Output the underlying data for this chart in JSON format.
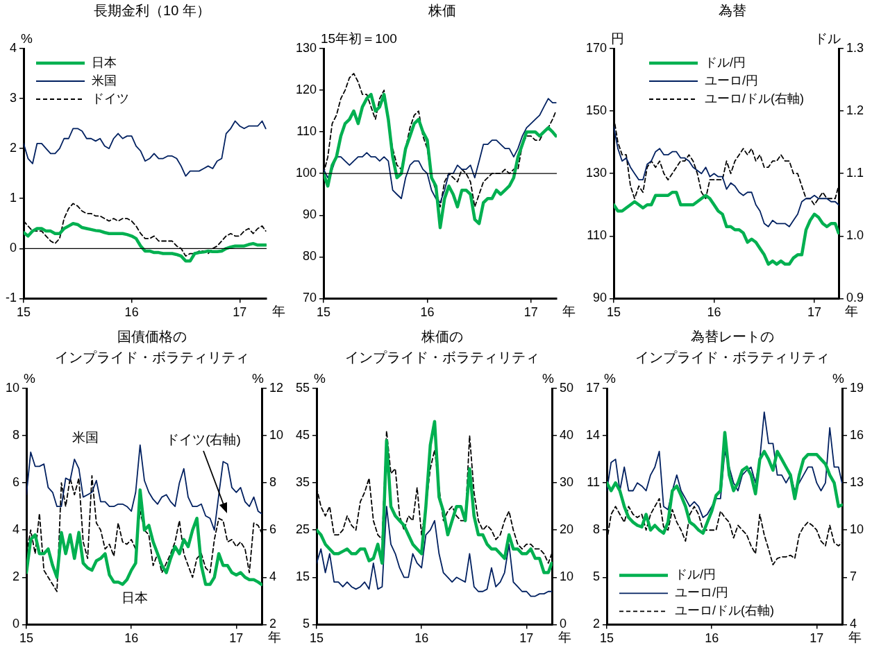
{
  "chart_data": [
    {
      "type": "line",
      "title": "長期金利（10 年）",
      "ylabel": "%",
      "xlabel": "年",
      "x": [
        "2015-01-01",
        "2015-01-16",
        "2015-02-01",
        "2015-02-16",
        "2015-03-01",
        "2015-03-16",
        "2015-04-01",
        "2015-04-16",
        "2015-05-01",
        "2015-05-16",
        "2015-06-01",
        "2015-06-16",
        "2015-07-01",
        "2015-07-16",
        "2015-08-01",
        "2015-08-16",
        "2015-09-01",
        "2015-09-16",
        "2015-10-01",
        "2015-10-16",
        "2015-11-01",
        "2015-11-16",
        "2015-12-01",
        "2015-12-16",
        "2016-01-01",
        "2016-01-16",
        "2016-02-01",
        "2016-02-16",
        "2016-03-01",
        "2016-03-16",
        "2016-04-01",
        "2016-04-16",
        "2016-05-01",
        "2016-05-16",
        "2016-06-01",
        "2016-06-16",
        "2016-07-01",
        "2016-07-16",
        "2016-08-01",
        "2016-08-16",
        "2016-09-01",
        "2016-09-16",
        "2016-10-01",
        "2016-10-16",
        "2016-11-01",
        "2016-11-16",
        "2016-12-01",
        "2016-12-16",
        "2017-01-01",
        "2017-01-16",
        "2017-02-01",
        "2017-02-16",
        "2017-03-01",
        "2017-03-16",
        "2017-03-28"
      ],
      "series": [
        {
          "name": "日本",
          "color": "#00b050",
          "values": [
            0.32,
            0.25,
            0.35,
            0.4,
            0.4,
            0.35,
            0.35,
            0.3,
            0.3,
            0.4,
            0.45,
            0.5,
            0.48,
            0.42,
            0.4,
            0.38,
            0.36,
            0.35,
            0.32,
            0.3,
            0.3,
            0.3,
            0.3,
            0.28,
            0.25,
            0.2,
            0.05,
            -0.05,
            -0.05,
            -0.08,
            -0.08,
            -0.1,
            -0.1,
            -0.1,
            -0.12,
            -0.15,
            -0.25,
            -0.25,
            -0.1,
            -0.08,
            -0.07,
            -0.05,
            -0.06,
            -0.06,
            -0.05,
            0.0,
            0.03,
            0.05,
            0.05,
            0.05,
            0.08,
            0.1,
            0.07,
            0.07,
            0.07
          ]
        },
        {
          "name": "米国",
          "color": "#002060",
          "values": [
            2.1,
            1.8,
            1.7,
            2.1,
            2.1,
            2.0,
            1.9,
            1.9,
            2.0,
            2.2,
            2.2,
            2.4,
            2.4,
            2.35,
            2.2,
            2.2,
            2.15,
            2.2,
            2.05,
            2.0,
            2.2,
            2.3,
            2.2,
            2.25,
            2.25,
            2.05,
            1.95,
            1.75,
            1.8,
            1.9,
            1.8,
            1.8,
            1.85,
            1.85,
            1.8,
            1.65,
            1.45,
            1.55,
            1.55,
            1.55,
            1.6,
            1.65,
            1.6,
            1.75,
            1.8,
            2.3,
            2.4,
            2.55,
            2.45,
            2.4,
            2.45,
            2.45,
            2.45,
            2.55,
            2.4
          ]
        },
        {
          "name": "ドイツ",
          "color": "#000000",
          "line_style": "dashed",
          "values": [
            0.55,
            0.45,
            0.35,
            0.35,
            0.35,
            0.25,
            0.15,
            0.1,
            0.2,
            0.6,
            0.8,
            0.9,
            0.85,
            0.75,
            0.7,
            0.7,
            0.65,
            0.65,
            0.6,
            0.55,
            0.6,
            0.55,
            0.6,
            0.6,
            0.55,
            0.45,
            0.3,
            0.2,
            0.2,
            0.25,
            0.15,
            0.15,
            0.15,
            0.15,
            0.05,
            0.0,
            -0.15,
            -0.1,
            -0.1,
            -0.05,
            -0.05,
            -0.1,
            0.0,
            0.05,
            0.15,
            0.25,
            0.3,
            0.25,
            0.25,
            0.35,
            0.4,
            0.3,
            0.4,
            0.45,
            0.35
          ]
        }
      ],
      "xlim": [
        "2015-01-01",
        "2017-03-31"
      ],
      "xticks": [
        {
          "value": "2015",
          "label": "15"
        },
        {
          "value": "2016",
          "label": "16"
        },
        {
          "value": "2017",
          "label": "17"
        }
      ],
      "ylim": [
        -1,
        4
      ],
      "yticks": [
        -1,
        0,
        1,
        2,
        3,
        4
      ],
      "ref_lines": [
        {
          "axis": "y",
          "value": 0,
          "color": "#000000"
        }
      ],
      "legend": "top left",
      "grid": false
    },
    {
      "type": "line",
      "title": "株価",
      "ylabel": "15年初＝100",
      "xlabel": "年",
      "x": [
        "2015-01-01",
        "2015-01-16",
        "2015-02-01",
        "2015-02-16",
        "2015-03-01",
        "2015-03-16",
        "2015-04-01",
        "2015-04-16",
        "2015-05-01",
        "2015-05-16",
        "2015-06-01",
        "2015-06-16",
        "2015-07-01",
        "2015-07-16",
        "2015-08-01",
        "2015-08-16",
        "2015-09-01",
        "2015-09-16",
        "2015-10-01",
        "2015-10-16",
        "2015-11-01",
        "2015-11-16",
        "2015-12-01",
        "2015-12-16",
        "2016-01-01",
        "2016-01-16",
        "2016-02-01",
        "2016-02-16",
        "2016-03-01",
        "2016-03-16",
        "2016-04-01",
        "2016-04-16",
        "2016-05-01",
        "2016-05-16",
        "2016-06-01",
        "2016-06-16",
        "2016-07-01",
        "2016-07-16",
        "2016-08-01",
        "2016-08-16",
        "2016-09-01",
        "2016-09-16",
        "2016-10-01",
        "2016-10-16",
        "2016-11-01",
        "2016-11-16",
        "2016-12-01",
        "2016-12-16",
        "2017-01-01",
        "2017-01-16",
        "2017-02-01",
        "2017-02-16",
        "2017-03-01",
        "2017-03-16",
        "2017-03-28"
      ],
      "series": [
        {
          "color": "#00b050",
          "values": [
            100,
            97,
            102,
            104,
            109,
            112,
            113,
            115,
            112,
            116,
            118,
            119,
            115,
            116,
            119,
            113,
            104,
            99,
            100,
            106,
            109,
            112,
            113,
            110,
            108,
            99,
            97,
            87,
            94,
            97,
            95,
            92,
            96,
            96,
            95,
            89,
            88,
            93,
            94,
            94,
            96,
            95,
            96,
            97,
            99,
            104,
            107,
            110,
            110,
            110,
            109,
            110,
            111,
            110,
            109
          ]
        },
        {
          "color": "#002060",
          "values": [
            101,
            99,
            101,
            104,
            104,
            103,
            102,
            103,
            104,
            104,
            105,
            104,
            104,
            103,
            104,
            103,
            96,
            95,
            94,
            99,
            102,
            103,
            103,
            101,
            100,
            96,
            94,
            93,
            96,
            100,
            100,
            102,
            101,
            101,
            102,
            99,
            103,
            107,
            107,
            108,
            108,
            107,
            106,
            106,
            104,
            106,
            109,
            111,
            112,
            113,
            114,
            116,
            118,
            117,
            117
          ]
        },
        {
          "color": "#000000",
          "line_style": "dashed",
          "values": [
            100,
            104,
            112,
            114,
            118,
            120,
            123,
            124,
            122,
            119,
            119,
            116,
            113,
            118,
            120,
            112,
            106,
            102,
            101,
            106,
            111,
            114,
            115,
            109,
            106,
            99,
            96,
            92,
            98,
            100,
            99,
            98,
            101,
            100,
            98,
            92,
            95,
            98,
            99,
            100,
            100,
            100,
            101,
            100,
            101,
            101,
            107,
            109,
            109,
            108,
            108,
            110,
            111,
            113,
            115
          ]
        }
      ],
      "xlim": [
        "2015-01-01",
        "2017-03-31"
      ],
      "xticks": [
        {
          "value": "2015",
          "label": "15"
        },
        {
          "value": "2016",
          "label": "16"
        },
        {
          "value": "2017",
          "label": "17"
        }
      ],
      "ylim": [
        70,
        130
      ],
      "yticks": [
        70,
        80,
        90,
        100,
        110,
        120,
        130
      ],
      "ref_lines": [
        {
          "axis": "y",
          "value": 100,
          "color": "#000000"
        }
      ],
      "grid": false
    },
    {
      "type": "line",
      "title": "為替",
      "ylabel": "円",
      "y2label": "ドル",
      "xlabel": "年",
      "x": [
        "2015-01-01",
        "2015-01-16",
        "2015-02-01",
        "2015-02-16",
        "2015-03-01",
        "2015-03-16",
        "2015-04-01",
        "2015-04-16",
        "2015-05-01",
        "2015-05-16",
        "2015-06-01",
        "2015-06-16",
        "2015-07-01",
        "2015-07-16",
        "2015-08-01",
        "2015-08-16",
        "2015-09-01",
        "2015-09-16",
        "2015-10-01",
        "2015-10-16",
        "2015-11-01",
        "2015-11-16",
        "2015-12-01",
        "2015-12-16",
        "2016-01-01",
        "2016-01-16",
        "2016-02-01",
        "2016-02-16",
        "2016-03-01",
        "2016-03-16",
        "2016-04-01",
        "2016-04-16",
        "2016-05-01",
        "2016-05-16",
        "2016-06-01",
        "2016-06-16",
        "2016-07-01",
        "2016-07-16",
        "2016-08-01",
        "2016-08-16",
        "2016-09-01",
        "2016-09-16",
        "2016-10-01",
        "2016-10-16",
        "2016-11-01",
        "2016-11-16",
        "2016-12-01",
        "2016-12-16",
        "2017-01-01",
        "2017-01-16",
        "2017-02-01",
        "2017-02-16",
        "2017-03-01",
        "2017-03-16",
        "2017-03-28"
      ],
      "series": [
        {
          "name": "ドル/円",
          "color": "#00b050",
          "values": [
            120,
            118,
            118,
            119,
            120,
            121,
            120,
            119,
            120,
            120,
            123,
            123,
            123,
            123,
            124,
            124,
            120,
            120,
            120,
            120,
            121,
            122,
            123,
            122,
            120,
            118,
            117,
            113,
            113,
            112,
            112,
            111,
            108,
            109,
            108,
            106,
            104,
            101,
            102,
            101,
            102,
            101,
            101,
            103,
            104,
            104,
            112,
            115,
            117,
            116,
            114,
            113,
            114,
            114,
            111
          ]
        },
        {
          "name": "ユーロ/円",
          "color": "#002060",
          "values": [
            145,
            138,
            134,
            135,
            132,
            130,
            128,
            128,
            133,
            134,
            137,
            138,
            136,
            136,
            137,
            137,
            135,
            135,
            134,
            132,
            131,
            130,
            132,
            129,
            130,
            129,
            129,
            125,
            127,
            126,
            124,
            123,
            124,
            124,
            120,
            118,
            114,
            113,
            115,
            114,
            114,
            114,
            113,
            115,
            117,
            121,
            122,
            122,
            123,
            122,
            122,
            122,
            121,
            121,
            120
          ]
        },
        {
          "name": "ユーロ/ドル(右軸)",
          "color": "#000000",
          "line_style": "dashed",
          "axis": "y2",
          "values": [
            1.19,
            1.15,
            1.13,
            1.13,
            1.08,
            1.06,
            1.08,
            1.07,
            1.11,
            1.12,
            1.11,
            1.12,
            1.1,
            1.09,
            1.1,
            1.11,
            1.12,
            1.12,
            1.13,
            1.12,
            1.1,
            1.07,
            1.06,
            1.09,
            1.09,
            1.09,
            1.09,
            1.12,
            1.1,
            1.12,
            1.13,
            1.14,
            1.13,
            1.14,
            1.12,
            1.13,
            1.11,
            1.11,
            1.12,
            1.12,
            1.13,
            1.12,
            1.12,
            1.1,
            1.1,
            1.08,
            1.06,
            1.06,
            1.05,
            1.06,
            1.07,
            1.06,
            1.06,
            1.06,
            1.08
          ]
        }
      ],
      "xlim": [
        "2015-01-01",
        "2017-03-31"
      ],
      "xticks": [
        {
          "value": "2015",
          "label": "15"
        },
        {
          "value": "2016",
          "label": "16"
        },
        {
          "value": "2017",
          "label": "17"
        }
      ],
      "ylim": [
        90,
        170
      ],
      "yticks": [
        90,
        110,
        130,
        150,
        170
      ],
      "y2lim": [
        0.9,
        1.3
      ],
      "y2ticks": [
        {
          "value": 0.9,
          "label": "0.9"
        },
        {
          "value": 1.0,
          "label": "1.0"
        },
        {
          "value": 1.1,
          "label": "1.1"
        },
        {
          "value": 1.2,
          "label": "1.2"
        },
        {
          "value": 1.3,
          "label": "1.3"
        }
      ],
      "legend": "top",
      "grid": false
    },
    {
      "type": "line",
      "title": "国債価格の",
      "subtitle": "インプライド・ボラティリティ",
      "ylabel": "%",
      "y2label": "%",
      "xlabel": "年",
      "x": [
        "2015-01-01",
        "2015-01-16",
        "2015-02-01",
        "2015-02-16",
        "2015-03-01",
        "2015-03-16",
        "2015-04-01",
        "2015-04-16",
        "2015-05-01",
        "2015-05-16",
        "2015-06-01",
        "2015-06-16",
        "2015-07-01",
        "2015-07-16",
        "2015-08-01",
        "2015-08-16",
        "2015-09-01",
        "2015-09-16",
        "2015-10-01",
        "2015-10-16",
        "2015-11-01",
        "2015-11-16",
        "2015-12-01",
        "2015-12-16",
        "2016-01-01",
        "2016-01-16",
        "2016-02-01",
        "2016-02-16",
        "2016-03-01",
        "2016-03-16",
        "2016-04-01",
        "2016-04-16",
        "2016-05-01",
        "2016-05-16",
        "2016-06-01",
        "2016-06-16",
        "2016-07-01",
        "2016-07-16",
        "2016-08-01",
        "2016-08-16",
        "2016-09-01",
        "2016-09-16",
        "2016-10-01",
        "2016-10-16",
        "2016-11-01",
        "2016-11-16",
        "2016-12-01",
        "2016-12-16",
        "2017-01-01",
        "2017-01-16",
        "2017-02-01",
        "2017-02-16",
        "2017-03-01",
        "2017-03-16",
        "2017-03-28"
      ],
      "series": [
        {
          "color": "#00b050",
          "values": [
            2.2,
            3.6,
            3.8,
            3.0,
            3.0,
            3.2,
            2.5,
            2.0,
            3.9,
            3.0,
            3.8,
            2.8,
            3.9,
            2.6,
            2.4,
            2.3,
            2.7,
            2.8,
            3.0,
            2.1,
            1.8,
            1.8,
            1.7,
            1.9,
            2.3,
            2.6,
            5.7,
            4.0,
            4.2,
            3.5,
            3.0,
            2.5,
            2.2,
            2.8,
            3.3,
            3.0,
            3.6,
            3.3,
            4.0,
            4.5,
            2.5,
            1.7,
            1.7,
            2.0,
            3.0,
            2.5,
            2.5,
            2.2,
            2.1,
            2.2,
            2.0,
            1.9,
            1.9,
            1.8,
            1.7
          ]
        },
        {
          "color": "#002060",
          "values": [
            5.5,
            7.3,
            6.7,
            6.7,
            6.8,
            5.8,
            5.6,
            5.0,
            5.0,
            6.2,
            6.1,
            7.0,
            6.6,
            5.4,
            5.5,
            5.6,
            6.1,
            5.2,
            5.2,
            5.0,
            5.0,
            5.1,
            5.1,
            5.0,
            4.8,
            5.6,
            7.6,
            6.1,
            5.6,
            5.3,
            5.1,
            5.4,
            5.5,
            5.2,
            5.0,
            6.0,
            6.6,
            5.4,
            5.0,
            5.0,
            5.1,
            4.6,
            4.5,
            4.0,
            5.5,
            6.9,
            6.8,
            5.8,
            5.6,
            5.8,
            5.2,
            5.0,
            5.4,
            4.8,
            4.7
          ]
        },
        {
          "color": "#000000",
          "line_style": "dashed",
          "axis": "y2",
          "values": [
            5.0,
            6.0,
            5.0,
            6.7,
            4.3,
            4.0,
            3.7,
            3.4,
            8.0,
            7.0,
            8.2,
            7.5,
            8.2,
            5.5,
            4.8,
            8.3,
            6.3,
            6.0,
            5.2,
            5.4,
            4.9,
            6.3,
            5.5,
            5.4,
            5.6,
            5.2,
            6.8,
            6.0,
            5.8,
            4.5,
            5.0,
            4.2,
            4.6,
            5.0,
            5.5,
            6.4,
            5.0,
            4.5,
            4.0,
            4.8,
            5.0,
            4.4,
            4.2,
            5.6,
            6.5,
            6.4,
            5.5,
            5.6,
            5.3,
            5.5,
            5.2,
            4.2,
            6.3,
            6.2,
            5.9
          ]
        }
      ],
      "annotations": [
        "米国",
        "日本",
        "ドイツ(右軸)"
      ],
      "xlim": [
        "2015-01-01",
        "2017-03-31"
      ],
      "xticks": [
        {
          "value": "2015",
          "label": "15"
        },
        {
          "value": "2016",
          "label": "16"
        },
        {
          "value": "2017",
          "label": "17"
        }
      ],
      "ylim": [
        0,
        10
      ],
      "yticks": [
        0,
        2,
        4,
        6,
        8,
        10
      ],
      "y2lim": [
        2,
        12
      ],
      "y2ticks": [
        2,
        4,
        6,
        8,
        10,
        12
      ],
      "grid": false
    },
    {
      "type": "line",
      "title": "株価の",
      "subtitle": "インプライド・ボラティリティ",
      "ylabel": "%",
      "y2label": "%",
      "xlabel": "年",
      "x": [
        "2015-01-01",
        "2015-01-16",
        "2015-02-01",
        "2015-02-16",
        "2015-03-01",
        "2015-03-16",
        "2015-04-01",
        "2015-04-16",
        "2015-05-01",
        "2015-05-16",
        "2015-06-01",
        "2015-06-16",
        "2015-07-01",
        "2015-07-16",
        "2015-08-01",
        "2015-08-16",
        "2015-09-01",
        "2015-09-16",
        "2015-10-01",
        "2015-10-16",
        "2015-11-01",
        "2015-11-16",
        "2015-12-01",
        "2015-12-16",
        "2016-01-01",
        "2016-01-16",
        "2016-02-01",
        "2016-02-16",
        "2016-03-01",
        "2016-03-16",
        "2016-04-01",
        "2016-04-16",
        "2016-05-01",
        "2016-05-16",
        "2016-06-01",
        "2016-06-16",
        "2016-07-01",
        "2016-07-16",
        "2016-08-01",
        "2016-08-16",
        "2016-09-01",
        "2016-09-16",
        "2016-10-01",
        "2016-10-16",
        "2016-11-01",
        "2016-11-16",
        "2016-12-01",
        "2016-12-16",
        "2017-01-01",
        "2017-01-16",
        "2017-02-01",
        "2017-02-16",
        "2017-03-01",
        "2017-03-16",
        "2017-03-28"
      ],
      "series": [
        {
          "color": "#00b050",
          "values": [
            25,
            24,
            22,
            21,
            20,
            20,
            20.5,
            21,
            20,
            20,
            21,
            21,
            18.5,
            19,
            22,
            18,
            44,
            30,
            28,
            27,
            26,
            24,
            22,
            21,
            20,
            30,
            43,
            48,
            32,
            29,
            24,
            27,
            30,
            30,
            27,
            38,
            28,
            24,
            24,
            22,
            21,
            21,
            20,
            19,
            24,
            21,
            21,
            20,
            20,
            21,
            19,
            19,
            16,
            16,
            18
          ]
        },
        {
          "color": "#002060",
          "values": [
            18,
            21,
            16,
            20,
            14,
            14,
            13,
            14,
            13,
            12.5,
            13,
            14,
            12.5,
            18,
            12.5,
            13,
            30,
            22,
            20,
            17,
            15,
            15,
            20,
            18,
            17,
            24,
            25,
            27,
            20,
            16,
            15,
            14,
            15,
            14.5,
            14,
            20,
            13,
            12,
            12,
            12.5,
            17,
            13,
            14,
            16,
            22,
            14,
            13,
            12,
            12,
            11,
            11,
            11.5,
            11.5,
            12,
            12
          ]
        },
        {
          "color": "#000000",
          "line_style": "dashed",
          "axis": "y2",
          "values": [
            29,
            25,
            23,
            25,
            19,
            19,
            20,
            23,
            21,
            20,
            26,
            28,
            31,
            22,
            19,
            18,
            41,
            32,
            33,
            23,
            20,
            23,
            22,
            29,
            19,
            25,
            33,
            37,
            29,
            22,
            24,
            25,
            23,
            22,
            22,
            40,
            28,
            22,
            20,
            21,
            20,
            18,
            19,
            22,
            24,
            20,
            17,
            16,
            17,
            17,
            16,
            16,
            15,
            13,
            15
          ]
        }
      ],
      "xlim": [
        "2015-01-01",
        "2017-03-31"
      ],
      "xticks": [
        {
          "value": "2015",
          "label": "15"
        },
        {
          "value": "2016",
          "label": "16"
        },
        {
          "value": "2017",
          "label": "17"
        }
      ],
      "ylim": [
        5,
        55
      ],
      "yticks": [
        5,
        15,
        25,
        35,
        45,
        55
      ],
      "y2lim": [
        0,
        50
      ],
      "y2ticks": [
        0,
        10,
        20,
        30,
        40,
        50
      ],
      "grid": false
    },
    {
      "type": "line",
      "title": "為替レートの",
      "subtitle": "インプライド・ボラティリティ",
      "ylabel": "%",
      "y2label": "%",
      "xlabel": "年",
      "x": [
        "2015-01-01",
        "2015-01-16",
        "2015-02-01",
        "2015-02-16",
        "2015-03-01",
        "2015-03-16",
        "2015-04-01",
        "2015-04-16",
        "2015-05-01",
        "2015-05-16",
        "2015-06-01",
        "2015-06-16",
        "2015-07-01",
        "2015-07-16",
        "2015-08-01",
        "2015-08-16",
        "2015-09-01",
        "2015-09-16",
        "2015-10-01",
        "2015-10-16",
        "2015-11-01",
        "2015-11-16",
        "2015-12-01",
        "2015-12-16",
        "2016-01-01",
        "2016-01-16",
        "2016-02-01",
        "2016-02-16",
        "2016-03-01",
        "2016-03-16",
        "2016-04-01",
        "2016-04-16",
        "2016-05-01",
        "2016-05-16",
        "2016-06-01",
        "2016-06-16",
        "2016-07-01",
        "2016-07-16",
        "2016-08-01",
        "2016-08-16",
        "2016-09-01",
        "2016-09-16",
        "2016-10-01",
        "2016-10-16",
        "2016-11-01",
        "2016-11-16",
        "2016-12-01",
        "2016-12-16",
        "2017-01-01",
        "2017-01-16",
        "2017-02-01",
        "2017-02-16",
        "2017-03-01",
        "2017-03-16",
        "2017-03-28"
      ],
      "series": [
        {
          "name": "ドル/円",
          "color": "#00b050",
          "values": [
            11,
            10.5,
            11,
            10.5,
            9.5,
            8.8,
            8.5,
            8.3,
            8.2,
            9.0,
            8.0,
            8.3,
            8.0,
            7.8,
            8.5,
            10.5,
            10.8,
            10.2,
            9.5,
            8.5,
            8.3,
            8.0,
            7.8,
            8.5,
            9.2,
            10.2,
            10.5,
            14.2,
            11.5,
            10.5,
            11,
            11.8,
            12,
            11.5,
            10.3,
            12.5,
            13,
            12.5,
            11.8,
            13,
            12.5,
            12,
            11.5,
            10,
            11.5,
            12.5,
            12.8,
            12.8,
            12.8,
            12.5,
            12.2,
            11.5,
            11,
            9.5,
            9.6
          ]
        },
        {
          "name": "ユーロ/円",
          "color": "#002060",
          "values": [
            10.5,
            12.3,
            12.5,
            10.5,
            12,
            10.5,
            10.5,
            11,
            10.8,
            10.5,
            11.5,
            12,
            13,
            9.5,
            9.3,
            10.5,
            11.5,
            10.5,
            10,
            9.5,
            9.8,
            9.5,
            8.8,
            9,
            9.5,
            10,
            10,
            13,
            12,
            11,
            10.5,
            11.5,
            11.8,
            12,
            11,
            12.5,
            15.5,
            13.5,
            13.5,
            11.5,
            11.5,
            11,
            11.5,
            10.5,
            11,
            11.5,
            12,
            12,
            11,
            10.5,
            11,
            14.5,
            12,
            12,
            11
          ]
        },
        {
          "name": "ユーロ/ドル(右軸)",
          "color": "#000000",
          "line_style": "dashed",
          "axis": "y2",
          "values": [
            9.3,
            11,
            11.5,
            11,
            10.5,
            11.5,
            11,
            10.8,
            11,
            10,
            11,
            11.5,
            12,
            10.2,
            10,
            11.3,
            10.5,
            10,
            9.3,
            11,
            11.5,
            11,
            10,
            10,
            10,
            10,
            11.2,
            10.8,
            10.5,
            9.5,
            10.3,
            10,
            9.7,
            9,
            8.5,
            11,
            9.7,
            8.8,
            7.8,
            8.2,
            8.3,
            8.3,
            8.4,
            8.2,
            9.7,
            10.2,
            10.5,
            10.3,
            10,
            9.3,
            9,
            10.3,
            9.2,
            9,
            9.2
          ]
        }
      ],
      "xlim": [
        "2015-01-01",
        "2017-03-31"
      ],
      "xticks": [
        {
          "value": "2015",
          "label": "15"
        },
        {
          "value": "2016",
          "label": "16"
        },
        {
          "value": "2017",
          "label": "17"
        }
      ],
      "ylim": [
        2,
        17
      ],
      "yticks": [
        2,
        5,
        8,
        11,
        14,
        17
      ],
      "y2lim": [
        4,
        19
      ],
      "y2ticks": [
        4,
        7,
        10,
        13,
        16,
        19
      ],
      "legend": "bottom left",
      "grid": false
    }
  ]
}
